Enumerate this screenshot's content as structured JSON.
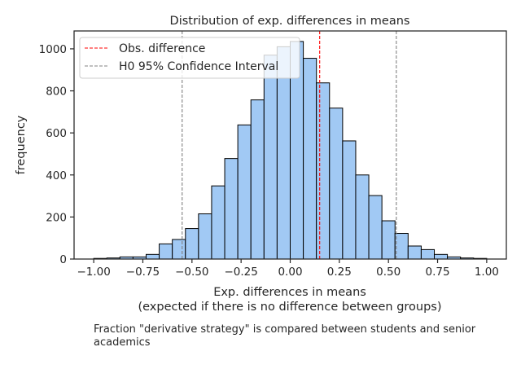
{
  "chart_data": {
    "type": "bar",
    "title": "Distribution of exp. differences in means",
    "xlabel_line1": "Exp. differences in means",
    "xlabel_line2": "(expected if there is no difference between groups)",
    "ylabel": "frequency",
    "xlim": [
      -1.1,
      1.1
    ],
    "ylim": [
      0,
      1085
    ],
    "grid": false,
    "legend_placement": "top-left",
    "x_ticks": [
      -1.0,
      -0.75,
      -0.5,
      -0.25,
      0.0,
      0.25,
      0.5,
      0.75,
      1.0
    ],
    "x_tick_labels": [
      "−1.00",
      "−0.75",
      "−0.50",
      "−0.25",
      "0.00",
      "0.25",
      "0.50",
      "0.75",
      "1.00"
    ],
    "y_ticks": [
      0,
      200,
      400,
      600,
      800,
      1000
    ],
    "y_tick_labels": [
      "0",
      "200",
      "400",
      "600",
      "800",
      "1000"
    ],
    "bin_width": 0.0667,
    "bin_left_edges": [
      -1.0,
      -0.9333,
      -0.8667,
      -0.8,
      -0.7333,
      -0.6667,
      -0.6,
      -0.5333,
      -0.4667,
      -0.4,
      -0.3333,
      -0.2667,
      -0.2,
      -0.1333,
      -0.0667,
      0.0,
      0.0667,
      0.1333,
      0.2,
      0.2667,
      0.3333,
      0.4,
      0.4667,
      0.5333,
      0.6,
      0.6667,
      0.7333,
      0.8,
      0.8667,
      0.9333
    ],
    "values": [
      3,
      5,
      10,
      10,
      22,
      72,
      93,
      145,
      215,
      348,
      478,
      638,
      757,
      970,
      1010,
      1035,
      955,
      838,
      718,
      562,
      400,
      302,
      182,
      122,
      62,
      45,
      22,
      10,
      5,
      3
    ],
    "bar_color": "#a1c9f4",
    "bar_edge_color": "#000000",
    "lines": [
      {
        "name": "Obs. difference",
        "x": 0.15,
        "color": "#ff0000",
        "style": "dashed"
      },
      {
        "name": "H0 95% Confidence Interval",
        "x": -0.55,
        "color": "#808080",
        "style": "dashed"
      },
      {
        "name": "",
        "x": 0.54,
        "color": "#808080",
        "style": "dashed"
      }
    ],
    "legend": [
      "Obs. difference",
      "H0 95% Confidence Interval"
    ]
  },
  "caption": "Fraction \"derivative strategy\" is compared between students and senior academics"
}
